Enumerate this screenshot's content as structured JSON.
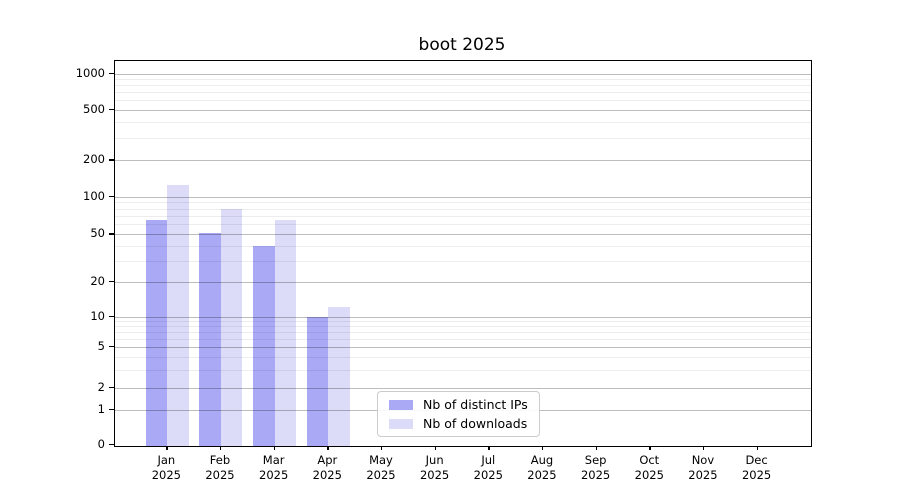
{
  "title": "boot 2025",
  "chart_data": {
    "type": "bar",
    "title": "boot 2025",
    "categories": [
      "Jan",
      "Feb",
      "Mar",
      "Apr",
      "May",
      "Jun",
      "Jul",
      "Aug",
      "Sep",
      "Oct",
      "Nov",
      "Dec"
    ],
    "year": "2025",
    "series": [
      {
        "name": "Nb of distinct IPs",
        "color": "#a9a9f6",
        "values": [
          65,
          51,
          40,
          10,
          0,
          0,
          0,
          0,
          0,
          0,
          0,
          0
        ]
      },
      {
        "name": "Nb of downloads",
        "color": "#dcdcf9",
        "values": [
          125,
          80,
          65,
          12,
          0,
          0,
          0,
          0,
          0,
          0,
          0,
          0
        ]
      }
    ],
    "y_axis": {
      "scale": "symlog",
      "ticks": [
        0,
        1,
        2,
        5,
        10,
        20,
        50,
        100,
        200,
        500,
        1000
      ],
      "minor_ticks": [
        3,
        4,
        6,
        7,
        8,
        9,
        30,
        40,
        60,
        70,
        80,
        90,
        300,
        400,
        600,
        700,
        800,
        900
      ],
      "ylim": [
        0,
        1300
      ]
    },
    "x_axis": {
      "tick_label_lines": 2
    },
    "legend": {
      "position": "lower-center",
      "border_color": "#cccccc"
    },
    "grid": true
  }
}
